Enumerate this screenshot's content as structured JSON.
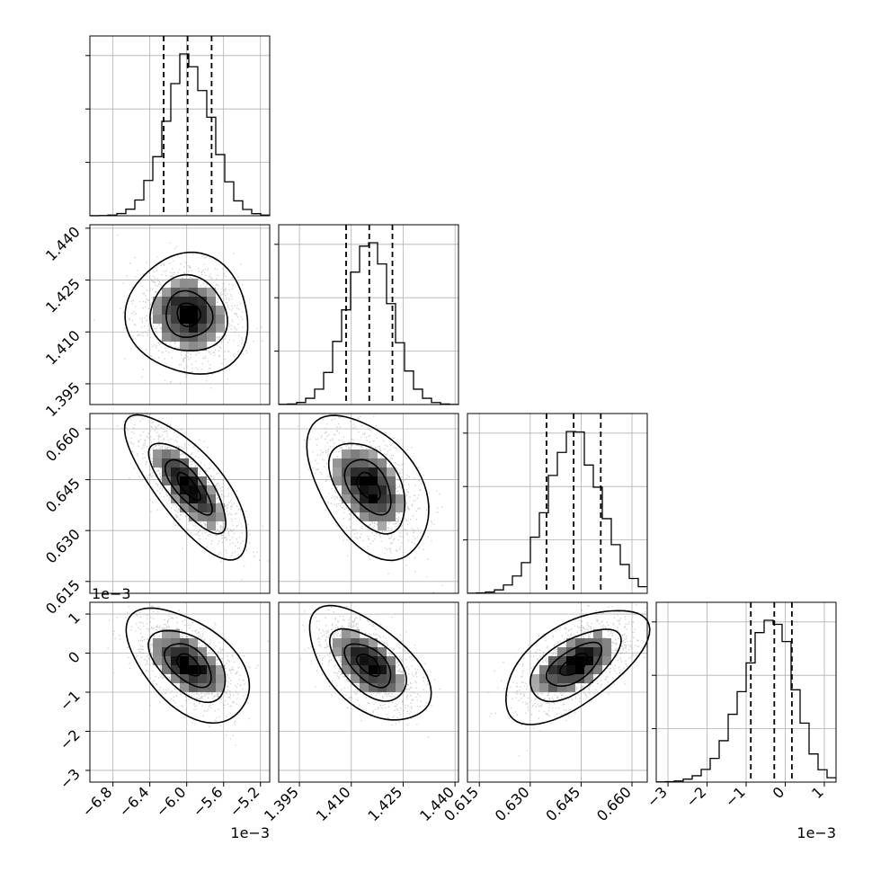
{
  "chart_data": {
    "type": "corner",
    "grid": true,
    "parameters": [
      {
        "ticks": [
          -6.8,
          -6.4,
          -6.0,
          -5.6,
          -5.2
        ],
        "tick_labels": [
          "−6.8",
          "−6.4",
          "−6.0",
          "−5.6",
          "−5.2"
        ],
        "offset_label": "1e−3",
        "range": [
          -7.05,
          -5.1
        ],
        "quantiles": [
          -6.25,
          -5.99,
          -5.73
        ],
        "mean": -5.98,
        "sd": 0.25
      },
      {
        "ticks": [
          1.395,
          1.41,
          1.425,
          1.44
        ],
        "tick_labels": [
          "1.395",
          "1.410",
          "1.425",
          "1.440"
        ],
        "offset_label": "",
        "range": [
          1.389,
          1.441
        ],
        "quantiles": [
          1.4085,
          1.4152,
          1.4219
        ],
        "mean": 1.415,
        "sd": 0.0066
      },
      {
        "ticks": [
          0.615,
          0.63,
          0.645,
          0.66
        ],
        "tick_labels": [
          "0.615",
          "0.630",
          "0.645",
          "0.660"
        ],
        "offset_label": "",
        "range": [
          0.6115,
          0.6645
        ],
        "quantiles": [
          0.6348,
          0.6428,
          0.6508
        ],
        "mean": 0.643,
        "sd": 0.008
      },
      {
        "ticks": [
          -3,
          -2,
          -1,
          0,
          1
        ],
        "tick_labels": [
          "−3",
          "−2",
          "−1",
          "0",
          "1"
        ],
        "offset_label": "1e−3",
        "range": [
          -3.3,
          1.3
        ],
        "quantiles": [
          -0.88,
          -0.28,
          0.17
        ],
        "mean": -0.3,
        "sd": 0.55
      }
    ],
    "correlations": {
      "1-0": -0.05,
      "2-0": -0.75,
      "2-1": -0.45,
      "3-0": -0.5,
      "3-1": -0.55,
      "3-2": 0.6
    },
    "histogram_bins": 20
  }
}
